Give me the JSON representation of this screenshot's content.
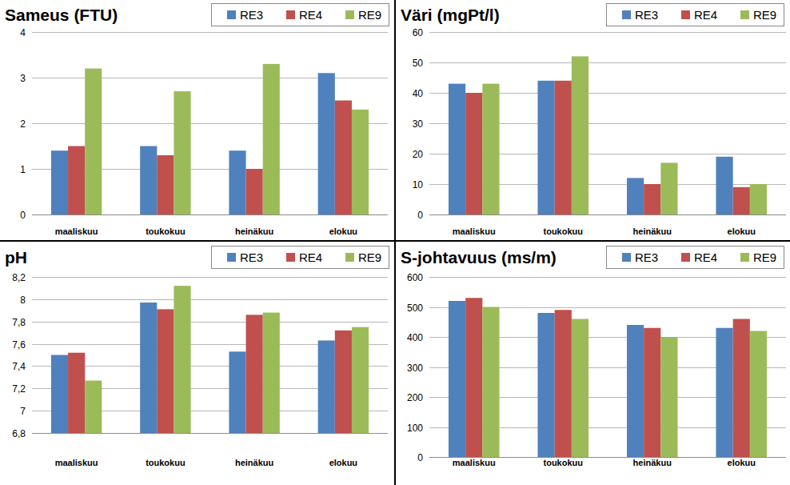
{
  "chart_data": [
    {
      "type": "bar",
      "title": "Sameus (FTU)",
      "categories": [
        "maaliskuu",
        "toukokuu",
        "heinäkuu",
        "elokuu"
      ],
      "series": [
        {
          "name": "RE3",
          "color": "#4f81bd",
          "values": [
            1.4,
            1.5,
            1.4,
            3.1
          ]
        },
        {
          "name": "RE4",
          "color": "#c0504d",
          "values": [
            1.5,
            1.3,
            1.0,
            2.5
          ]
        },
        {
          "name": "RE9",
          "color": "#9bbb59",
          "values": [
            3.2,
            2.7,
            3.3,
            2.3
          ]
        }
      ],
      "ylim": [
        0,
        4
      ],
      "yticks": [
        0,
        1,
        2,
        3,
        4
      ],
      "grid": true,
      "legend": "top-right"
    },
    {
      "type": "bar",
      "title": "Väri (mgPt/l)",
      "categories": [
        "maaliskuu",
        "toukokuu",
        "heinäkuu",
        "elokuu"
      ],
      "series": [
        {
          "name": "RE3",
          "color": "#4f81bd",
          "values": [
            43,
            44,
            12,
            19
          ]
        },
        {
          "name": "RE4",
          "color": "#c0504d",
          "values": [
            40,
            44,
            10,
            9
          ]
        },
        {
          "name": "RE9",
          "color": "#9bbb59",
          "values": [
            43,
            52,
            17,
            10
          ]
        }
      ],
      "ylim": [
        0,
        60
      ],
      "yticks": [
        0,
        10,
        20,
        30,
        40,
        50,
        60
      ],
      "grid": true,
      "legend": "top-right"
    },
    {
      "type": "bar",
      "title": "pH",
      "categories": [
        "maaliskuu",
        "toukokuu",
        "heinäkuu",
        "elokuu"
      ],
      "series": [
        {
          "name": "RE3",
          "color": "#4f81bd",
          "values": [
            7.5,
            7.97,
            7.53,
            7.63
          ]
        },
        {
          "name": "RE4",
          "color": "#c0504d",
          "values": [
            7.52,
            7.91,
            7.86,
            7.72
          ]
        },
        {
          "name": "RE9",
          "color": "#9bbb59",
          "values": [
            7.27,
            8.12,
            7.88,
            7.75
          ]
        }
      ],
      "ylim": [
        6.8,
        8.2
      ],
      "yticks": [
        {
          "value": 6.8,
          "label": "6,8"
        },
        7,
        {
          "value": 7.2,
          "label": "7,2"
        },
        {
          "value": 7.4,
          "label": "7,4"
        },
        {
          "value": 7.6,
          "label": "7,6"
        },
        {
          "value": 7.8,
          "label": "7,8"
        },
        8,
        {
          "value": 8.2,
          "label": "8,2"
        }
      ],
      "grid": true,
      "legend": "top-right"
    },
    {
      "type": "bar",
      "title": "S-johtavuus (ms/m)",
      "categories": [
        "maaliskuu",
        "toukokuu",
        "heinäkuu",
        "elokuu"
      ],
      "series": [
        {
          "name": "RE3",
          "color": "#4f81bd",
          "values": [
            520,
            480,
            440,
            430
          ]
        },
        {
          "name": "RE4",
          "color": "#c0504d",
          "values": [
            530,
            490,
            430,
            460
          ]
        },
        {
          "name": "RE9",
          "color": "#9bbb59",
          "values": [
            500,
            460,
            400,
            420
          ]
        }
      ],
      "ylim": [
        0,
        600
      ],
      "yticks": [
        0,
        100,
        200,
        300,
        400,
        500,
        600
      ],
      "grid": true,
      "legend": "top-right"
    }
  ]
}
